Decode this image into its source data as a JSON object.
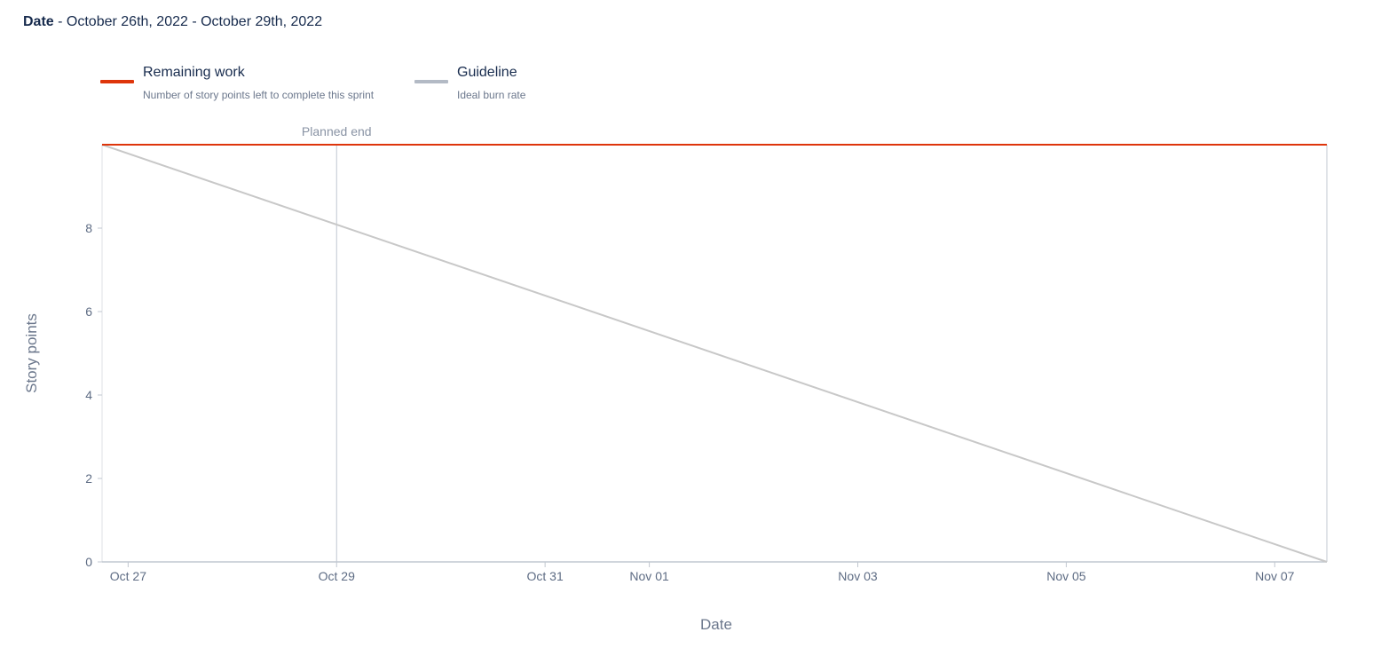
{
  "header": {
    "date_label": "Date",
    "date_range": " - October 26th, 2022 - October 29th, 2022"
  },
  "legend": [
    {
      "title": "Remaining work",
      "description": "Number of story points left to complete this sprint",
      "color": "#de350b"
    },
    {
      "title": "Guideline",
      "description": "Ideal burn rate",
      "color": "#b3bac5"
    }
  ],
  "chart_data": {
    "type": "line",
    "xlabel": "Date",
    "ylabel": "Story points",
    "x_range": [
      "2022-10-26T18:00",
      "2022-11-07T12:00"
    ],
    "ylim": [
      0,
      10
    ],
    "y_ticks": [
      0,
      2,
      4,
      6,
      8
    ],
    "x_ticks": [
      {
        "date": "2022-10-27",
        "label": "Oct 27"
      },
      {
        "date": "2022-10-29",
        "label": "Oct 29"
      },
      {
        "date": "2022-10-31",
        "label": "Oct 31"
      },
      {
        "date": "2022-11-01",
        "label": "Nov 01"
      },
      {
        "date": "2022-11-03",
        "label": "Nov 03"
      },
      {
        "date": "2022-11-05",
        "label": "Nov 05"
      },
      {
        "date": "2022-11-07",
        "label": "Nov 07"
      }
    ],
    "series": [
      {
        "name": "Remaining work",
        "color": "#de350b",
        "points": [
          {
            "x": "2022-10-26T18:00",
            "y": 10
          },
          {
            "x": "2022-11-07T12:00",
            "y": 10
          }
        ]
      },
      {
        "name": "Guideline",
        "color": "#c8c8c8",
        "points": [
          {
            "x": "2022-10-26T18:00",
            "y": 10
          },
          {
            "x": "2022-11-07T12:00",
            "y": 0
          }
        ]
      }
    ],
    "annotations": [
      {
        "type": "vertical-line",
        "x": "2022-10-29T00:00",
        "label": "Planned end"
      }
    ]
  }
}
